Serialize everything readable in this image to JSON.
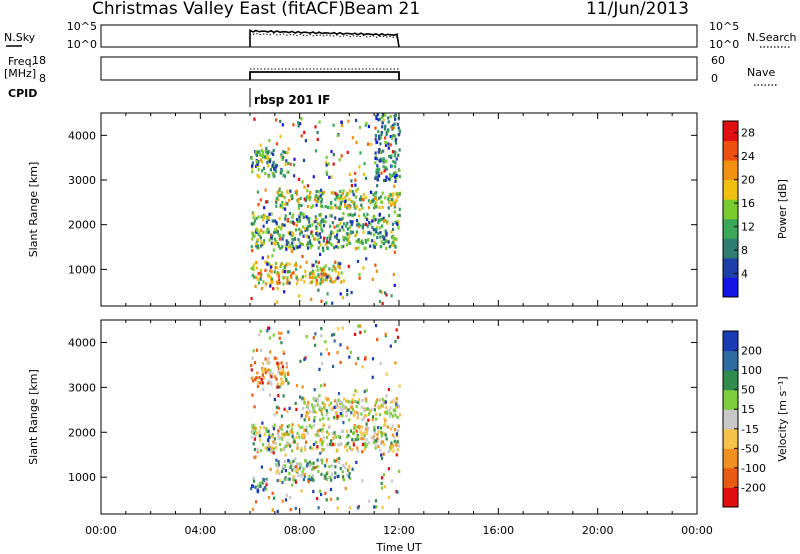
{
  "header": {
    "station": "Christmas Valley East (fitACF)",
    "beam": "Beam 21",
    "date": "11/Jun/2013"
  },
  "nsky_panel": {
    "left_label": "N.Sky",
    "left_ticks": [
      "10^5",
      "10^0"
    ],
    "right_ticks": [
      "10^5",
      "10^0"
    ],
    "right_label": "N.Search"
  },
  "freq_panel": {
    "left_label": "Freq. [MHz]",
    "left_ticks": [
      "18",
      "8"
    ],
    "right_ticks": [
      "60",
      "0"
    ],
    "right_label": "Nave"
  },
  "cpid": {
    "label": "CPID",
    "value": "rbsp 201 IF"
  },
  "chart_data": [
    {
      "type": "heatmap",
      "title": "",
      "xlabel": "Time UT",
      "ylabel": "Slant Range [km]",
      "xlim": [
        "00:00",
        "24:00"
      ],
      "ylim": [
        180,
        4500
      ],
      "yticks": [
        "1000",
        "2000",
        "3000",
        "4000"
      ],
      "data_time_range": [
        "06:00",
        "12:00"
      ],
      "colorbar": {
        "label": "Power [dB]",
        "ticks": [
          "4",
          "8",
          "12",
          "16",
          "20",
          "24",
          "28"
        ],
        "range": [
          0,
          30
        ],
        "colors": [
          "#1414e6",
          "#1f3fa8",
          "#2e7d6e",
          "#3aa858",
          "#7acc2e",
          "#f0c010",
          "#f29010",
          "#ee5010",
          "#e01010"
        ]
      },
      "echo_bands": [
        {
          "range_km": [
            700,
            1200
          ],
          "time": [
            "06:00",
            "09:40"
          ],
          "typical": 20
        },
        {
          "range_km": [
            1500,
            2300
          ],
          "time": [
            "06:00",
            "12:00"
          ],
          "typical": 12
        },
        {
          "range_km": [
            2400,
            2800
          ],
          "time": [
            "07:00",
            "12:00"
          ],
          "typical": 14
        },
        {
          "range_km": [
            3100,
            3700
          ],
          "time": [
            "06:00",
            "07:30"
          ],
          "typical": 10
        },
        {
          "range_km": [
            3000,
            4500
          ],
          "time": [
            "11:00",
            "12:00"
          ],
          "typical": 8
        }
      ]
    },
    {
      "type": "heatmap",
      "title": "",
      "xlabel": "Time UT",
      "ylabel": "Slant Range [km]",
      "xlim": [
        "00:00",
        "24:00"
      ],
      "xticks": [
        "00:00",
        "04:00",
        "08:00",
        "12:00",
        "16:00",
        "20:00",
        "00:00"
      ],
      "ylim": [
        180,
        4500
      ],
      "yticks": [
        "1000",
        "2000",
        "3000",
        "4000"
      ],
      "data_time_range": [
        "06:00",
        "12:00"
      ],
      "colorbar": {
        "label": "Velocity [m s⁻¹]",
        "ticks": [
          "200",
          "100",
          "50",
          "15",
          "-15",
          "-50",
          "-100",
          "-200"
        ],
        "colors": [
          "#1a3ab4",
          "#2f6aa0",
          "#2f8c4e",
          "#7ccc3c",
          "#c8c8c8",
          "#f6c24a",
          "#f09020",
          "#e95a10",
          "#e01010"
        ]
      },
      "echo_bands": [
        {
          "range_km": [
            700,
            1000
          ],
          "time": [
            "06:00",
            "06:40"
          ],
          "typical_ms": 80
        },
        {
          "range_km": [
            950,
            1450
          ],
          "time": [
            "07:00",
            "10:00"
          ],
          "typical_ms": 30
        },
        {
          "range_km": [
            1600,
            2200
          ],
          "time": [
            "06:00",
            "12:00"
          ],
          "typical_ms": 0
        },
        {
          "range_km": [
            2300,
            2800
          ],
          "time": [
            "08:00",
            "12:00"
          ],
          "typical_ms": 0
        },
        {
          "range_km": [
            3100,
            3700
          ],
          "time": [
            "06:00",
            "07:30"
          ],
          "typical_ms": -40
        }
      ]
    }
  ]
}
